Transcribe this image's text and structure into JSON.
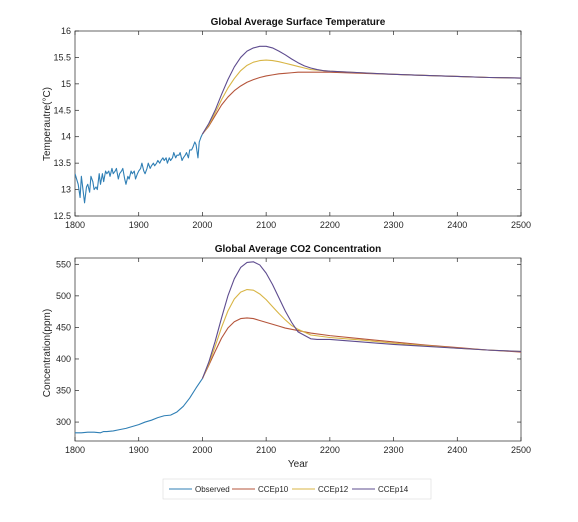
{
  "chart_data": [
    {
      "type": "line",
      "title": "Global Average Surface Temperature",
      "xlabel": "",
      "ylabel": "Temperautre(°C)",
      "xlim": [
        1800,
        2500
      ],
      "ylim": [
        12.5,
        16
      ],
      "xticks": [
        1800,
        1900,
        2000,
        2100,
        2200,
        2300,
        2400,
        2500
      ],
      "yticks": [
        12.5,
        13,
        13.5,
        14,
        14.5,
        15,
        15.5,
        16
      ],
      "series": [
        {
          "name": "Observed",
          "color": "#2f7fb5",
          "x": [
            1800,
            1805,
            1808,
            1810,
            1813,
            1815,
            1818,
            1820,
            1823,
            1825,
            1828,
            1830,
            1833,
            1835,
            1838,
            1840,
            1843,
            1845,
            1848,
            1850,
            1853,
            1855,
            1858,
            1860,
            1863,
            1865,
            1868,
            1870,
            1873,
            1875,
            1878,
            1880,
            1883,
            1885,
            1888,
            1890,
            1893,
            1895,
            1898,
            1900,
            1903,
            1905,
            1908,
            1910,
            1913,
            1915,
            1918,
            1920,
            1923,
            1925,
            1928,
            1930,
            1933,
            1935,
            1938,
            1940,
            1943,
            1945,
            1948,
            1950,
            1953,
            1955,
            1958,
            1960,
            1963,
            1965,
            1968,
            1970,
            1973,
            1975,
            1978,
            1980,
            1983,
            1985,
            1988,
            1990,
            1993,
            1995,
            1998,
            2000
          ],
          "y": [
            13.3,
            13.1,
            12.85,
            13.25,
            12.95,
            12.75,
            13.05,
            13.1,
            12.95,
            13.25,
            13.15,
            13.0,
            13.05,
            13.0,
            13.3,
            13.1,
            13.3,
            13.15,
            13.35,
            13.3,
            13.35,
            13.25,
            13.4,
            13.3,
            13.35,
            13.4,
            13.2,
            13.3,
            13.35,
            13.4,
            13.2,
            13.1,
            13.25,
            13.2,
            13.35,
            13.3,
            13.35,
            13.2,
            13.3,
            13.35,
            13.4,
            13.5,
            13.35,
            13.3,
            13.4,
            13.5,
            13.4,
            13.45,
            13.5,
            13.45,
            13.5,
            13.55,
            13.5,
            13.55,
            13.6,
            13.55,
            13.6,
            13.5,
            13.6,
            13.55,
            13.6,
            13.7,
            13.6,
            13.65,
            13.65,
            13.7,
            13.55,
            13.6,
            13.65,
            13.7,
            13.6,
            13.75,
            13.75,
            13.8,
            13.9,
            13.85,
            13.6,
            13.9,
            14.0,
            14.05
          ]
        },
        {
          "name": "CCEp10",
          "color": "#b5553b",
          "x": [
            2000,
            2010,
            2020,
            2030,
            2040,
            2050,
            2060,
            2070,
            2080,
            2090,
            2100,
            2110,
            2120,
            2130,
            2140,
            2150,
            2160,
            2170,
            2180,
            2190,
            2200,
            2250,
            2300,
            2350,
            2400,
            2450,
            2500
          ],
          "y": [
            14.05,
            14.2,
            14.4,
            14.6,
            14.75,
            14.87,
            14.96,
            15.03,
            15.08,
            15.12,
            15.15,
            15.17,
            15.19,
            15.2,
            15.21,
            15.22,
            15.22,
            15.22,
            15.22,
            15.22,
            15.22,
            15.2,
            15.18,
            15.16,
            15.14,
            15.12,
            15.11
          ]
        },
        {
          "name": "CCEp12",
          "color": "#d8b545",
          "x": [
            2000,
            2010,
            2020,
            2030,
            2040,
            2050,
            2060,
            2070,
            2080,
            2090,
            2100,
            2110,
            2120,
            2130,
            2140,
            2150,
            2160,
            2170,
            2180,
            2190,
            2200,
            2250,
            2300,
            2350,
            2400,
            2450,
            2500
          ],
          "y": [
            14.05,
            14.22,
            14.45,
            14.7,
            14.92,
            15.1,
            15.25,
            15.35,
            15.41,
            15.44,
            15.45,
            15.44,
            15.42,
            15.39,
            15.36,
            15.33,
            15.3,
            15.27,
            15.26,
            15.25,
            15.24,
            15.21,
            15.18,
            15.16,
            15.14,
            15.12,
            15.11
          ]
        },
        {
          "name": "CCEp14",
          "color": "#5e4c8f",
          "x": [
            2000,
            2010,
            2020,
            2030,
            2040,
            2050,
            2060,
            2070,
            2080,
            2090,
            2100,
            2110,
            2120,
            2130,
            2140,
            2150,
            2160,
            2170,
            2180,
            2190,
            2200,
            2250,
            2300,
            2350,
            2400,
            2450,
            2500
          ],
          "y": [
            14.05,
            14.25,
            14.5,
            14.8,
            15.08,
            15.32,
            15.5,
            15.62,
            15.68,
            15.71,
            15.71,
            15.68,
            15.62,
            15.55,
            15.47,
            15.4,
            15.34,
            15.3,
            15.27,
            15.25,
            15.24,
            15.21,
            15.18,
            15.16,
            15.14,
            15.12,
            15.11
          ]
        }
      ]
    },
    {
      "type": "line",
      "title": "Global Average CO2 Concentration",
      "xlabel": "Year",
      "ylabel": "Concentration(ppm)",
      "xlim": [
        1800,
        2500
      ],
      "ylim": [
        270,
        560
      ],
      "xticks": [
        1800,
        1900,
        2000,
        2100,
        2200,
        2300,
        2400,
        2500
      ],
      "yticks": [
        300,
        350,
        400,
        450,
        500,
        550
      ],
      "series": [
        {
          "name": "Observed",
          "color": "#2f7fb5",
          "x": [
            1800,
            1810,
            1820,
            1830,
            1840,
            1845,
            1850,
            1860,
            1870,
            1880,
            1890,
            1900,
            1910,
            1920,
            1930,
            1940,
            1950,
            1960,
            1970,
            1980,
            1990,
            2000
          ],
          "y": [
            283,
            283,
            284,
            284,
            283,
            285,
            285,
            286,
            288,
            290,
            293,
            296,
            300,
            303,
            307,
            310,
            311,
            316,
            325,
            338,
            354,
            369
          ]
        },
        {
          "name": "CCEp10",
          "color": "#b5553b",
          "x": [
            2000,
            2010,
            2020,
            2030,
            2040,
            2050,
            2060,
            2070,
            2080,
            2090,
            2100,
            2110,
            2120,
            2130,
            2140,
            2150,
            2170,
            2200,
            2250,
            2300,
            2350,
            2400,
            2450,
            2500
          ],
          "y": [
            369,
            390,
            412,
            433,
            449,
            459,
            464,
            465,
            464,
            461,
            458,
            455,
            452,
            449,
            447,
            445,
            441,
            437,
            432,
            427,
            422,
            418,
            414,
            411
          ]
        },
        {
          "name": "CCEp12",
          "color": "#d8b545",
          "x": [
            2000,
            2010,
            2020,
            2030,
            2040,
            2050,
            2060,
            2070,
            2080,
            2090,
            2100,
            2110,
            2120,
            2130,
            2140,
            2150,
            2170,
            2200,
            2250,
            2300,
            2350,
            2400,
            2450,
            2500
          ],
          "y": [
            369,
            392,
            420,
            450,
            476,
            495,
            506,
            510,
            509,
            503,
            494,
            483,
            472,
            462,
            453,
            447,
            438,
            434,
            430,
            425,
            421,
            417,
            414,
            412
          ]
        },
        {
          "name": "CCEp14",
          "color": "#5e4c8f",
          "x": [
            2000,
            2010,
            2020,
            2030,
            2040,
            2050,
            2060,
            2070,
            2080,
            2090,
            2100,
            2110,
            2120,
            2130,
            2140,
            2150,
            2170,
            2180,
            2200,
            2250,
            2300,
            2350,
            2400,
            2450,
            2500
          ],
          "y": [
            369,
            395,
            428,
            465,
            500,
            527,
            545,
            553,
            554,
            549,
            536,
            518,
            497,
            476,
            458,
            443,
            432,
            431,
            431,
            427,
            423,
            420,
            417,
            414,
            412
          ]
        }
      ]
    }
  ],
  "legend": {
    "items": [
      {
        "label": "Observed",
        "color": "#2f7fb5"
      },
      {
        "label": "CCEp10",
        "color": "#b5553b"
      },
      {
        "label": "CCEp12",
        "color": "#d8b545"
      },
      {
        "label": "CCEp14",
        "color": "#5e4c8f"
      }
    ]
  }
}
